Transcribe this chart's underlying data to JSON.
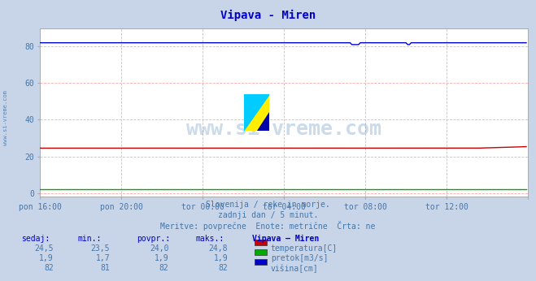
{
  "title": "Vipava - Miren",
  "title_color": "#0000cc",
  "bg_color": "#c8d4e8",
  "plot_bg_color": "#ffffff",
  "grid_color": "#ffaaaa",
  "ylabel_values": [
    0,
    20,
    40,
    60,
    80
  ],
  "ylim": [
    -2,
    90
  ],
  "xlim": [
    0,
    288
  ],
  "xlabel_ticks": [
    "pon 16:00",
    "pon 20:00",
    "tor 00:00",
    "tor 04:00",
    "tor 08:00",
    "tor 12:00"
  ],
  "line_temp_color": "#cc0000",
  "line_flow_color": "#00aa00",
  "line_height_color": "#0000cc",
  "watermark_color": "#5588bb",
  "subtitle1": "Slovenija / reke in morje.",
  "subtitle2": "zadnji dan / 5 minut.",
  "subtitle3": "Meritve: povprečne  Enote: metrične  Črta: ne",
  "col_headers": [
    "sedaj:",
    "min.:",
    "povpr.:",
    "maks.:",
    "Vipava – Miren"
  ],
  "rows": [
    [
      "24,5",
      "23,5",
      "24,0",
      "24,8"
    ],
    [
      "1,9",
      "1,7",
      "1,9",
      "1,9"
    ],
    [
      "82",
      "81",
      "82",
      "82"
    ]
  ],
  "legend_labels": [
    "temperatura[C]",
    "pretok[m3/s]",
    "višina[cm]"
  ],
  "legend_colors": [
    "#cc0000",
    "#00aa00",
    "#0000cc"
  ],
  "left_label": "www.si-vreme.com"
}
